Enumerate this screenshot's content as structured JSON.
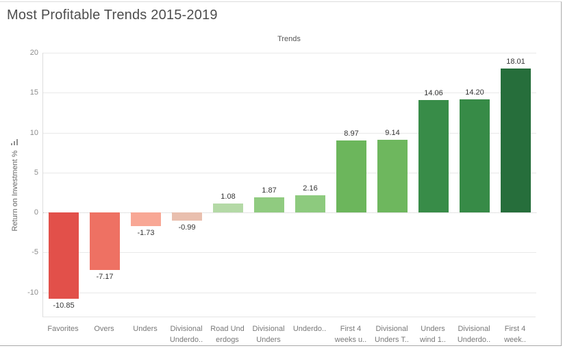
{
  "page": {
    "title": "Most Profitable Trends 2015-2019"
  },
  "chart_data": {
    "type": "bar",
    "title": "Most Profitable Trends 2015-2019",
    "column_header": "Trends",
    "ylabel": "Return on Investment %",
    "ylabel_icon": "sort-ascending-bars-icon",
    "ylim": [
      -13,
      20
    ],
    "yticks": [
      20,
      15,
      10,
      5,
      0,
      -5,
      -10
    ],
    "grid": "horizontal",
    "zero_line_style": "dotted",
    "legend": "none",
    "categories": [
      "Favorites",
      "Overs",
      "Unders",
      "Divisional Underdo..",
      "Road Und erdogs",
      "Divisional Unders",
      "Underdo..",
      "First 4 weeks u..",
      "Divisional Unders T..",
      "Unders wind 1..",
      "Divisional Underdo..",
      "First 4 week.."
    ],
    "category_label_lines": [
      [
        "Favorites"
      ],
      [
        "Overs"
      ],
      [
        "Unders"
      ],
      [
        "Divisional",
        "Underdo.."
      ],
      [
        "Road Und",
        "erdogs"
      ],
      [
        "Divisional",
        "Unders"
      ],
      [
        "Underdo.."
      ],
      [
        "First 4",
        "weeks u.."
      ],
      [
        "Divisional",
        "Unders T.."
      ],
      [
        "Unders",
        "wind 1.."
      ],
      [
        "Divisional",
        "Underdo.."
      ],
      [
        "First 4",
        "week.."
      ]
    ],
    "values": [
      -10.85,
      -7.17,
      -1.73,
      -0.99,
      1.08,
      1.87,
      2.16,
      8.97,
      9.14,
      14.06,
      14.2,
      18.01
    ],
    "value_labels": [
      "-10.85",
      "-7.17",
      "-1.73",
      "-0.99",
      "1.08",
      "1.87",
      "2.16",
      "8.97",
      "9.14",
      "14.06",
      "14.20",
      "18.01"
    ],
    "bar_colors": [
      "#e2504a",
      "#ee7163",
      "#f8a795",
      "#e9bfae",
      "#b4d9a6",
      "#90cb80",
      "#8dca7e",
      "#6cb65c",
      "#6eb75e",
      "#388c48",
      "#378b47",
      "#266e3b"
    ]
  },
  "colors": {
    "title_text": "#4d4d4d",
    "header_text": "#555555",
    "tick_text": "#8c8c8c",
    "category_text": "#787878",
    "value_text": "#333333",
    "gridline": "#e9e9e9",
    "zero_line": "#c9c9c9",
    "axis_line": "#dcdcdc",
    "window_border": "#a9a9a9"
  }
}
